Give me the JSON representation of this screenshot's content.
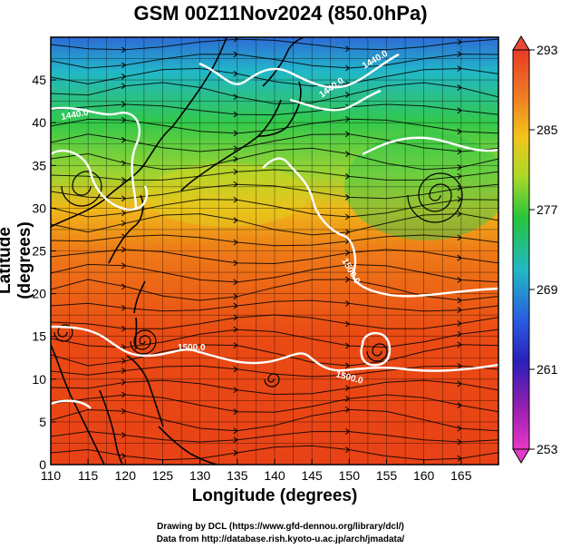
{
  "title": "GSM 00Z11Nov2024 (850.0hPa)",
  "axes": {
    "xlabel": "Longitude (degrees)",
    "ylabel": "Latitude  (degrees)",
    "xticks": [
      "110",
      "115",
      "120",
      "125",
      "130",
      "135",
      "140",
      "145",
      "150",
      "155",
      "160",
      "165"
    ],
    "yticks": [
      "0",
      "5",
      "10",
      "15",
      "20",
      "25",
      "30",
      "35",
      "40",
      "45"
    ],
    "xlim": [
      110,
      170
    ],
    "ylim": [
      0,
      50
    ]
  },
  "colorbar": {
    "labels": [
      "293",
      "285",
      "277",
      "269",
      "261",
      "253"
    ],
    "min": 253,
    "max": 293
  },
  "contour_labels": [
    "1440.0",
    "1440.0",
    "1440.0",
    "1500.0",
    "1500.0",
    "1500.0"
  ],
  "credits": {
    "line1": "Drawing by DCL (https://www.gfd-dennou.org/library/dcl/)",
    "line2": "Data from http://database.rish.kyoto-u.ac.jp/arch/jmadata/"
  }
}
